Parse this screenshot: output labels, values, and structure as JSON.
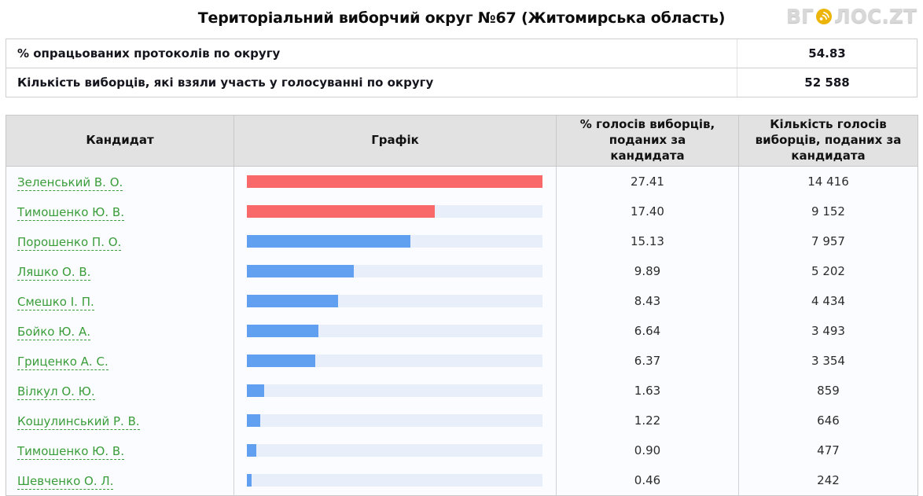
{
  "header": {
    "title": "Територіальний виборчий округ №67 (Житомирська область)",
    "logo": {
      "prefix": "ВГ",
      "suffix": "ЛОС.ZT",
      "icon": "sound-waves-icon",
      "icon_color": "#edb40a",
      "text_color": "#d8d8d8"
    }
  },
  "summary": {
    "rows": [
      {
        "label": "% опрацьованих протоколів по округу",
        "value": "54.83"
      },
      {
        "label": "Кількість виборців, які взяли участь у голосуванні по округу",
        "value": "52 588"
      }
    ]
  },
  "results_table": {
    "columns": [
      "Кандидат",
      "Графік",
      "% голосів виборців,\nподаних за\nкандидата",
      "Кількість голосів\nвиборців, поданих за\nкандидата"
    ],
    "rows": [
      {
        "candidate": "Зеленський В. О.",
        "percent": "27.41",
        "votes": "14 416",
        "bar_color": "#fa6969"
      },
      {
        "candidate": "Тимошенко Ю. В.",
        "percent": "17.40",
        "votes": "9 152",
        "bar_color": "#fa6969"
      },
      {
        "candidate": "Порошенко П. О.",
        "percent": "15.13",
        "votes": "7 957",
        "bar_color": "#61a0f0"
      },
      {
        "candidate": "Ляшко О. В.",
        "percent": "9.89",
        "votes": "5 202",
        "bar_color": "#61a0f0"
      },
      {
        "candidate": "Смешко І. П.",
        "percent": "8.43",
        "votes": "4 434",
        "bar_color": "#61a0f0"
      },
      {
        "candidate": "Бойко Ю. А.",
        "percent": "6.64",
        "votes": "3 493",
        "bar_color": "#61a0f0"
      },
      {
        "candidate": "Гриценко А. С.",
        "percent": "6.37",
        "votes": "3 354",
        "bar_color": "#61a0f0"
      },
      {
        "candidate": "Вілкул О. Ю.",
        "percent": "1.63",
        "votes": "859",
        "bar_color": "#61a0f0"
      },
      {
        "candidate": "Кошулинський Р. В.",
        "percent": "1.22",
        "votes": "646",
        "bar_color": "#61a0f0"
      },
      {
        "candidate": "Тимошенко Ю. В.",
        "percent": "0.90",
        "votes": "477",
        "bar_color": "#61a0f0"
      },
      {
        "candidate": "Шевченко О. Л.",
        "percent": "0.46",
        "votes": "242",
        "bar_color": "#61a0f0"
      }
    ]
  },
  "chart_data": {
    "type": "bar",
    "orientation": "horizontal",
    "title": "Графік",
    "categories": [
      "Зеленський В. О.",
      "Тимошенко Ю. В.",
      "Порошенко П. О.",
      "Ляшко О. В.",
      "Смешко І. П.",
      "Бойко Ю. А.",
      "Гриценко А. С.",
      "Вілкул О. Ю.",
      "Кошулинський Р. В.",
      "Тимошенко Ю. В.",
      "Шевченко О. Л."
    ],
    "series": [
      {
        "name": "% голосів виборців, поданих за кандидата",
        "values": [
          27.41,
          17.4,
          15.13,
          9.89,
          8.43,
          6.64,
          6.37,
          1.63,
          1.22,
          0.9,
          0.46
        ]
      },
      {
        "name": "Кількість голосів виборців, поданих за кандидата",
        "values": [
          14416,
          9152,
          7957,
          5202,
          4434,
          3493,
          3354,
          859,
          646,
          477,
          242
        ]
      }
    ],
    "xlim": [
      0,
      27.41
    ],
    "bar_colors": [
      "#fa6969",
      "#fa6969",
      "#61a0f0",
      "#61a0f0",
      "#61a0f0",
      "#61a0f0",
      "#61a0f0",
      "#61a0f0",
      "#61a0f0",
      "#61a0f0",
      "#61a0f0"
    ],
    "track_color": "#e9eefb",
    "grid": false,
    "legend": "none"
  }
}
